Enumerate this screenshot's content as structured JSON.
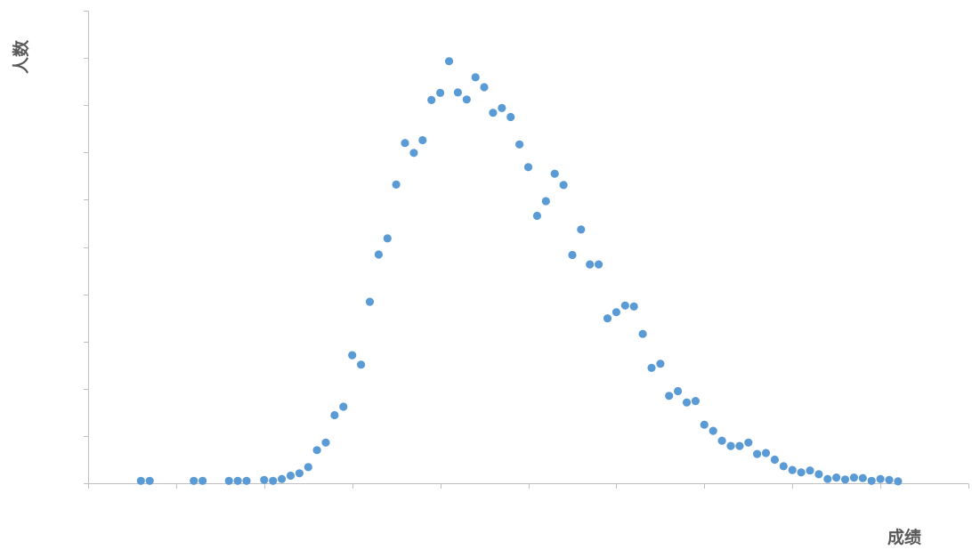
{
  "chart_data": {
    "type": "scatter",
    "title": "",
    "xlabel": "成绩",
    "ylabel": "人数",
    "grid": false,
    "legend": "none",
    "marker_color": "#5B9BD5",
    "axis_color": "#BFBFBF",
    "label_color": "#595959",
    "xlim": [
      0,
      100
    ],
    "ylim": [
      0,
      100
    ],
    "x_tick_step": 10,
    "y_tick_step": 10,
    "series": [
      {
        "x": [
          6,
          7,
          12,
          13,
          16,
          17,
          18,
          20,
          21,
          22,
          23,
          24,
          25,
          26,
          27,
          28,
          29,
          30,
          31,
          32,
          33,
          34,
          35,
          36,
          37,
          38,
          39,
          40,
          41,
          42,
          43,
          44,
          45,
          46,
          47,
          48,
          49,
          50,
          51,
          52,
          53,
          54,
          55,
          56,
          57,
          58,
          59,
          60,
          61,
          62,
          63,
          64,
          65,
          66,
          67,
          68,
          69,
          70,
          71,
          72,
          73,
          74,
          75,
          76,
          77,
          78,
          79,
          80,
          81,
          82,
          83,
          84,
          85,
          86,
          87,
          88,
          89,
          90,
          91,
          92
        ],
        "y": [
          0.5,
          0.5,
          0.5,
          0.5,
          0.5,
          0.5,
          0.5,
          0.7,
          0.5,
          0.9,
          1.6,
          2.1,
          3.4,
          7.0,
          8.6,
          14.4,
          16.2,
          27.1,
          25.1,
          38.4,
          48.4,
          51.8,
          63.2,
          72.0,
          69.9,
          72.6,
          81.1,
          82.6,
          89.3,
          82.7,
          81.2,
          85.9,
          83.8,
          78.4,
          79.4,
          77.5,
          71.7,
          66.9,
          56.6,
          59.7,
          65.5,
          63.1,
          48.3,
          53.7,
          46.3,
          46.3,
          34.9,
          36.2,
          37.6,
          37.4,
          31.6,
          24.4,
          25.3,
          18.5,
          19.5,
          17.1,
          17.4,
          12.4,
          11.1,
          9.0,
          7.9,
          7.9,
          8.6,
          6.2,
          6.4,
          5.0,
          3.6,
          2.8,
          2.3,
          2.7,
          1.9,
          0.9,
          1.2,
          0.8,
          1.2,
          1.1,
          0.5,
          0.9,
          0.7,
          0.4
        ]
      }
    ]
  }
}
